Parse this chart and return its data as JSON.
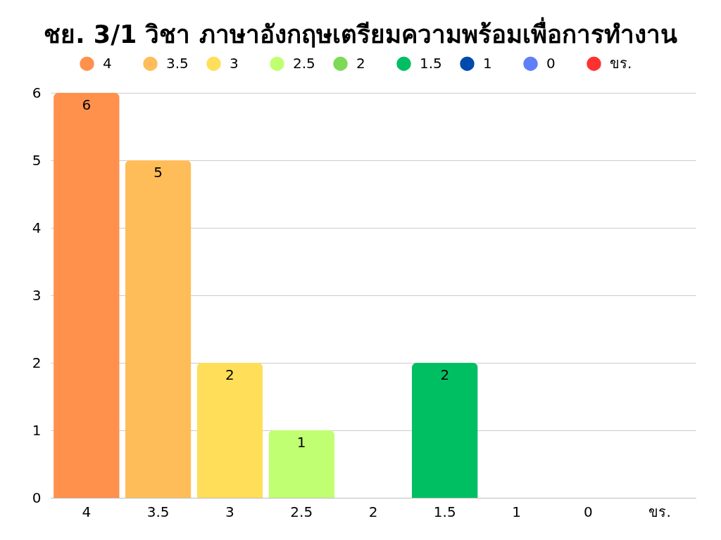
{
  "chart_data": {
    "type": "bar",
    "title": "ชย. 3/1 วิชา ภาษาอังกฤษเตรียมความพร้อมเพื่อการทำงาน",
    "categories": [
      "4",
      "3.5",
      "3",
      "2.5",
      "2",
      "1.5",
      "1",
      "0",
      "ขร."
    ],
    "stacked": true,
    "series": [
      {
        "name": "4",
        "color": "#ff914d",
        "values": [
          6,
          null,
          null,
          null,
          null,
          null,
          null,
          null,
          null
        ],
        "value_labels": [
          "6",
          null,
          null,
          null,
          null,
          null,
          null,
          null,
          null
        ]
      },
      {
        "name": "3.5",
        "color": "#ffbd59",
        "values": [
          null,
          5,
          null,
          null,
          null,
          null,
          null,
          null,
          null
        ],
        "value_labels": [
          null,
          "5",
          null,
          null,
          null,
          null,
          null,
          null,
          null
        ]
      },
      {
        "name": "3",
        "color": "#ffde59",
        "values": [
          null,
          null,
          2,
          null,
          null,
          null,
          null,
          null,
          null
        ],
        "value_labels": [
          null,
          null,
          "2",
          null,
          null,
          null,
          null,
          null,
          null
        ]
      },
      {
        "name": "2.5",
        "color": "#c1ff72",
        "values": [
          null,
          null,
          null,
          1,
          null,
          null,
          null,
          null,
          null
        ],
        "value_labels": [
          null,
          null,
          null,
          "1",
          null,
          null,
          null,
          null,
          null
        ]
      },
      {
        "name": "2",
        "color": "#7ed957",
        "values": [
          null,
          null,
          null,
          null,
          0,
          null,
          null,
          null,
          null
        ]
      },
      {
        "name": "1.5",
        "color": "#00bf63",
        "values": [
          null,
          null,
          null,
          null,
          null,
          2,
          null,
          null,
          null
        ],
        "value_labels": [
          null,
          null,
          null,
          null,
          null,
          "2",
          null,
          null,
          null
        ]
      },
      {
        "name": "1",
        "color": "#004aad",
        "values": [
          null,
          null,
          null,
          null,
          null,
          null,
          0,
          null,
          null
        ]
      },
      {
        "name": "0",
        "color": "#5e7ff7",
        "values": [
          null,
          null,
          null,
          null,
          null,
          null,
          null,
          0,
          null
        ]
      },
      {
        "name": "ขร.",
        "color": "#ff3131",
        "values": [
          null,
          null,
          null,
          null,
          null,
          null,
          null,
          null,
          0
        ]
      }
    ],
    "ylim": [
      0,
      6
    ],
    "yticks": [
      0,
      1,
      2,
      3,
      4,
      5,
      6
    ],
    "grid": "y",
    "legend": "top"
  }
}
